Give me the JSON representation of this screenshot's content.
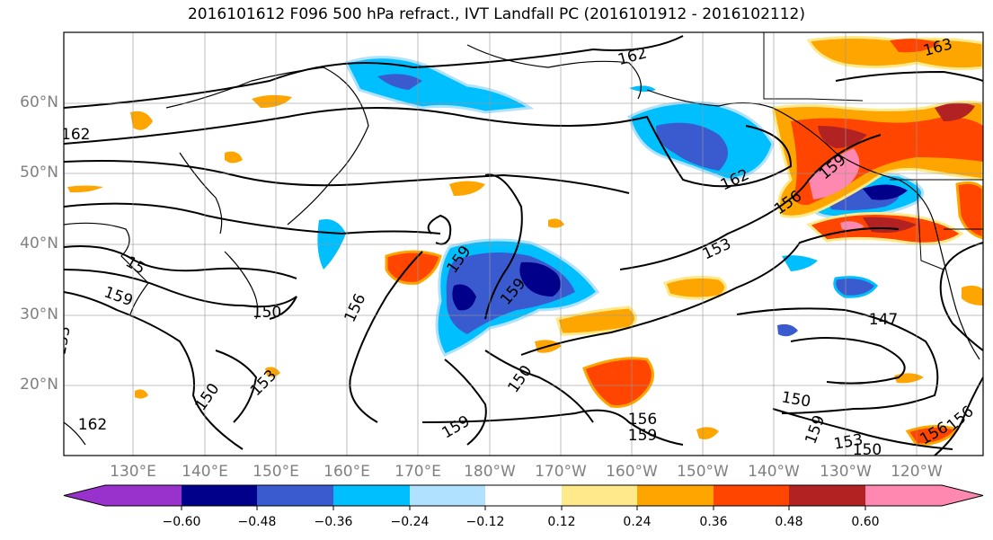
{
  "title": "2016101612 F096 500 hPa refract., IVT Landfall PC (2016101912 - 2016102112)",
  "lat_labels": [
    "60°N",
    "50°N",
    "40°N",
    "30°N",
    "20°N"
  ],
  "lon_labels": [
    "130°E",
    "140°E",
    "150°E",
    "160°E",
    "170°E",
    "180°W",
    "170°W",
    "160°W",
    "150°W",
    "140°W",
    "130°W",
    "120°W"
  ],
  "colorbar": {
    "colors": [
      "#9932cc",
      "#00008b",
      "#3a5bcf",
      "#00bfff",
      "#b0e2ff",
      "#ffffff",
      "#ffe98a",
      "#ffa500",
      "#ff4500",
      "#b22222",
      "#ff88b0"
    ],
    "tick_labels": [
      "−0.60",
      "−0.48",
      "−0.36",
      "−0.24",
      "−0.12",
      "0.12",
      "0.24",
      "0.36",
      "0.48",
      "0.60"
    ]
  },
  "contour_labels": [
    {
      "text": "162"
    },
    {
      "text": "162"
    },
    {
      "text": "162"
    },
    {
      "text": "163"
    },
    {
      "text": "159"
    },
    {
      "text": "159"
    },
    {
      "text": "156"
    },
    {
      "text": "156"
    },
    {
      "text": "150"
    },
    {
      "text": "153"
    },
    {
      "text": "153"
    },
    {
      "text": "150"
    },
    {
      "text": "159"
    },
    {
      "text": "150"
    },
    {
      "text": "147"
    },
    {
      "text": "150"
    },
    {
      "text": "156"
    },
    {
      "text": "159"
    },
    {
      "text": "159"
    },
    {
      "text": "153"
    },
    {
      "text": "150"
    },
    {
      "text": "156"
    },
    {
      "text": "159"
    },
    {
      "text": "153"
    },
    {
      "text": "159"
    },
    {
      "text": "156"
    },
    {
      "text": "162"
    },
    {
      "text": "15"
    }
  ]
}
